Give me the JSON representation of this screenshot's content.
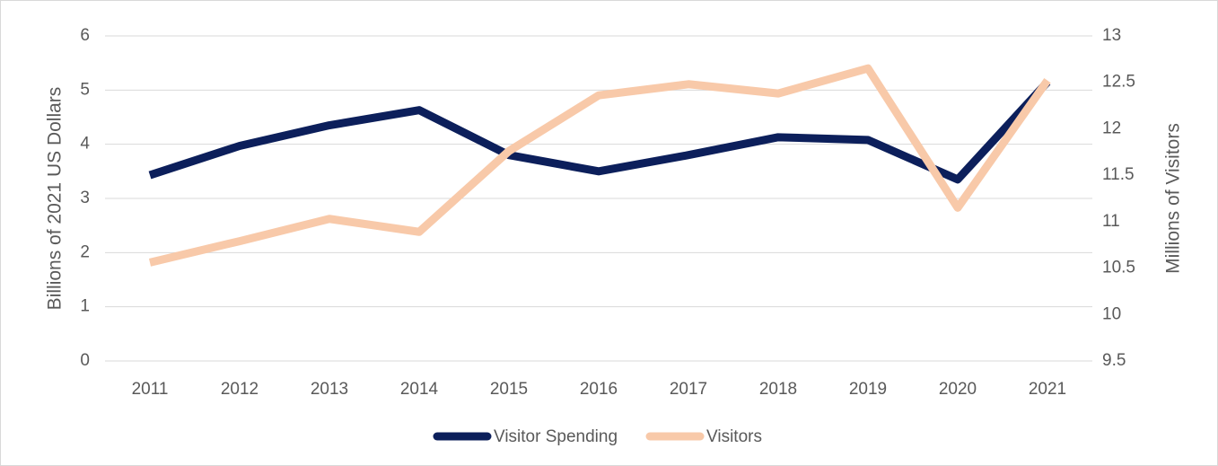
{
  "chart_data": {
    "type": "line",
    "categories": [
      "2011",
      "2012",
      "2013",
      "2014",
      "2015",
      "2016",
      "2017",
      "2018",
      "2019",
      "2020",
      "2021"
    ],
    "series": [
      {
        "name": "Visitor Spending",
        "color": "#0c1f5b",
        "values": [
          3.43,
          3.97,
          4.35,
          4.63,
          3.8,
          3.5,
          3.8,
          4.13,
          4.08,
          3.35,
          5.15
        ]
      },
      {
        "name": "Visitors",
        "color": "#f8c9a9",
        "axis": "y2",
        "values": [
          10.56,
          10.79,
          11.03,
          10.89,
          11.76,
          12.36,
          12.48,
          12.38,
          12.65,
          11.15,
          12.52
        ]
      }
    ],
    "ylabel": "Billions of 2021  US Dollars",
    "y2label": "Millions of Visitors",
    "ylim": [
      0,
      6
    ],
    "yticks": [
      0,
      1,
      2,
      3,
      4,
      5,
      6
    ],
    "y2lim": [
      9.5,
      13
    ],
    "y2ticks": [
      9.5,
      10,
      10.5,
      11,
      11.5,
      12,
      12.5,
      13
    ],
    "grid": true,
    "legend": "bottom"
  }
}
